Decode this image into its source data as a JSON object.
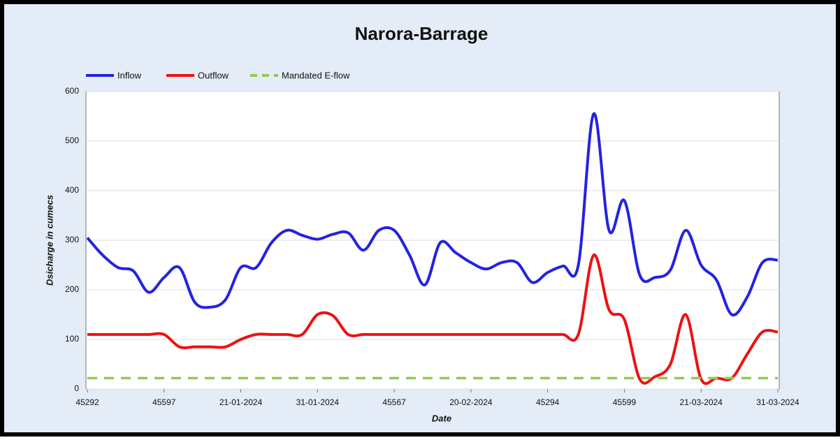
{
  "chart_data": {
    "type": "line",
    "title": "Narora-Barrage",
    "x_label": "Date",
    "y_label": "Dsicharge in cumecs",
    "categories": [
      "45292",
      null,
      null,
      null,
      null,
      "45597",
      null,
      null,
      null,
      null,
      "21-01-2024",
      null,
      null,
      null,
      null,
      "31-01-2024",
      null,
      null,
      null,
      null,
      "45567",
      null,
      null,
      null,
      null,
      "20-02-2024",
      null,
      null,
      null,
      null,
      "45294",
      null,
      null,
      null,
      null,
      "45599",
      null,
      null,
      null,
      null,
      "21-03-2024",
      null,
      null,
      null,
      null,
      "31-03-2024"
    ],
    "series": [
      {
        "name": "Inflow",
        "color": "#2323e0",
        "dash": false,
        "values": [
          305,
          270,
          245,
          238,
          195,
          225,
          245,
          175,
          165,
          180,
          245,
          245,
          295,
          320,
          310,
          302,
          312,
          315,
          280,
          320,
          320,
          270,
          210,
          295,
          275,
          255,
          242,
          255,
          255,
          215,
          235,
          248,
          250,
          555,
          320,
          380,
          230,
          225,
          240,
          320,
          250,
          220,
          150,
          185,
          255,
          260
        ]
      },
      {
        "name": "Outflow",
        "color": "#ee1111",
        "dash": false,
        "values": [
          110,
          110,
          110,
          110,
          110,
          110,
          85,
          85,
          85,
          85,
          100,
          110,
          110,
          110,
          110,
          150,
          148,
          110,
          110,
          110,
          110,
          110,
          110,
          110,
          110,
          110,
          110,
          110,
          110,
          110,
          110,
          110,
          110,
          270,
          160,
          140,
          20,
          25,
          50,
          150,
          20,
          22,
          22,
          70,
          115,
          115
        ]
      },
      {
        "name": "Mandated E-flow",
        "color": "#92c85a",
        "dash": true,
        "values": [
          22,
          22,
          22,
          22,
          22,
          22,
          22,
          22,
          22,
          22,
          22,
          22,
          22,
          22,
          22,
          22,
          22,
          22,
          22,
          22,
          22,
          22,
          22,
          22,
          22,
          22,
          22,
          22,
          22,
          22,
          22,
          22,
          22,
          22,
          22,
          22,
          22,
          22,
          22,
          22,
          22,
          22,
          22,
          22,
          22,
          22
        ]
      }
    ],
    "ylim": [
      0,
      600
    ],
    "yticks": [
      0,
      100,
      200,
      300,
      400,
      500,
      600
    ],
    "grid": true,
    "legend": "top-left"
  }
}
